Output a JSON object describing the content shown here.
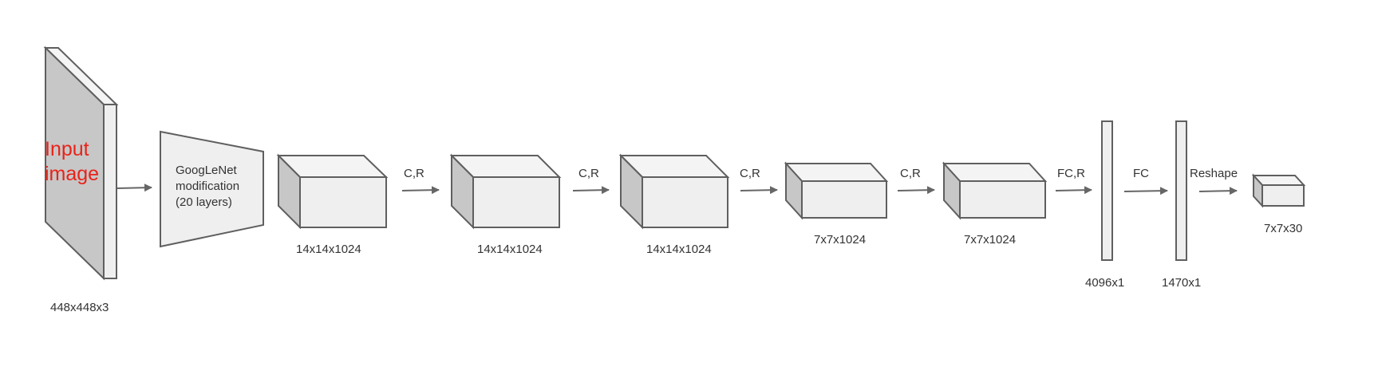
{
  "input": {
    "label_line1": "Input",
    "label_line2": "image",
    "dims": "448x448x3"
  },
  "googlenet": {
    "line1": "GoogLeNet",
    "line2": "modification",
    "line3": "(20 layers)"
  },
  "blocks": [
    {
      "dims": "14x14x1024"
    },
    {
      "dims": "14x14x1024"
    },
    {
      "dims": "14x14x1024"
    },
    {
      "dims": "7x7x1024"
    },
    {
      "dims": "7x7x1024"
    }
  ],
  "ops": [
    "C,R",
    "C,R",
    "C,R",
    "C,R",
    "FC,R",
    "FC",
    "Reshape"
  ],
  "fc_layers": [
    {
      "dims": "4096x1"
    },
    {
      "dims": "1470x1"
    }
  ],
  "output": {
    "dims": "7x7x30"
  },
  "colors": {
    "input_text": "#e8231a",
    "stroke": "#5f5f5f",
    "face_front": "#efefef",
    "face_side": "#c7c7c7"
  }
}
